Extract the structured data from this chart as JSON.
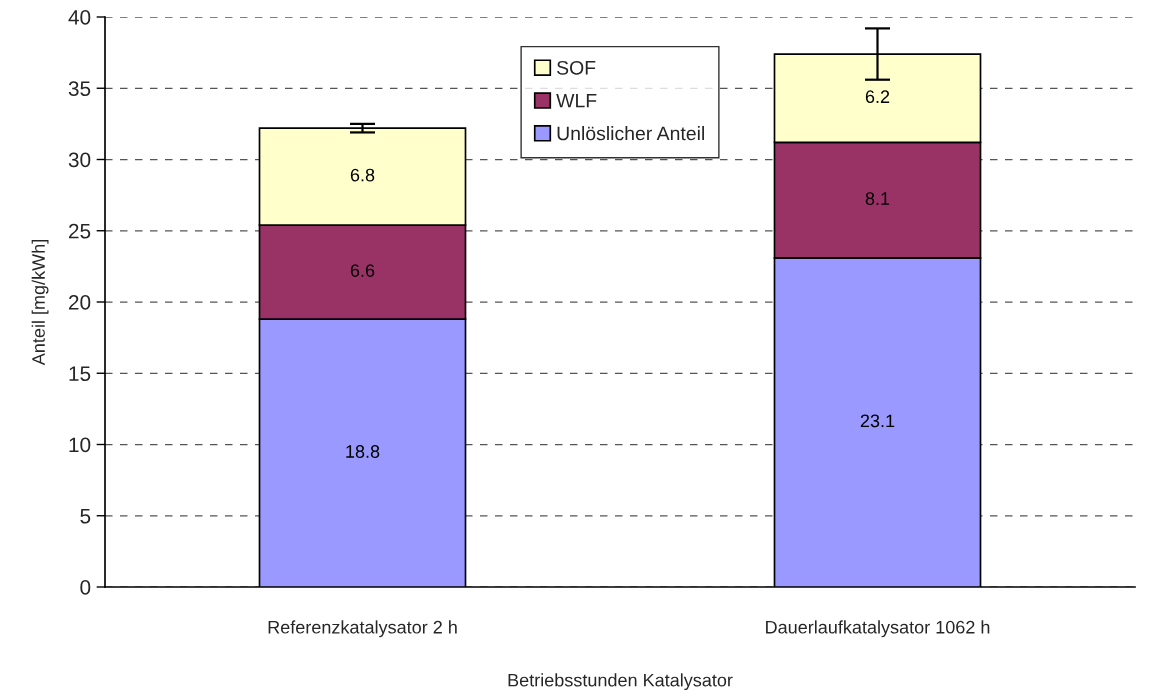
{
  "chart_data": {
    "type": "bar",
    "stacked": true,
    "xlabel": "Betriebsstunden Katalysator",
    "ylabel": "Anteil [mg/kWh]",
    "categories": [
      "Referenzkatalysator 2 h",
      "Dauerlaufkatalysator 1062 h"
    ],
    "series": [
      {
        "name": "Unlöslicher Anteil",
        "color": "#9999ff",
        "values": [
          18.8,
          23.1
        ]
      },
      {
        "name": "WLF",
        "color": "#993366",
        "values": [
          6.6,
          8.1
        ]
      },
      {
        "name": "SOF",
        "color": "#ffffcc",
        "values": [
          6.8,
          6.2
        ],
        "errors": [
          0.3,
          1.8
        ]
      }
    ],
    "ylim": [
      0,
      40
    ],
    "yticks": [
      0,
      5,
      10,
      15,
      20,
      25,
      30,
      35,
      40
    ],
    "grid": "y",
    "legend": "top",
    "data_labels": true
  }
}
